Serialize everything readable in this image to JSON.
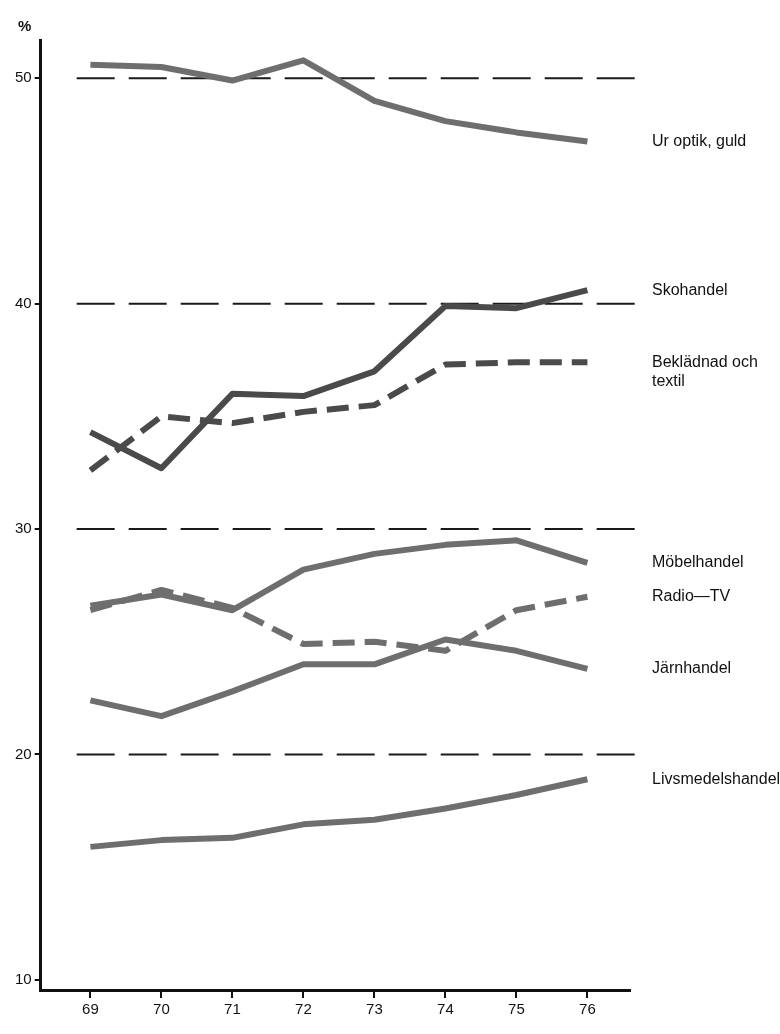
{
  "chart_data": {
    "type": "line",
    "ylabel": "%",
    "x": [
      69,
      70,
      71,
      72,
      73,
      74,
      75,
      76
    ],
    "xlim": [
      68.3,
      76.6
    ],
    "xticks": [
      69,
      70,
      71,
      72,
      73,
      74,
      75,
      76
    ],
    "ylim": [
      9.55,
      51.7
    ],
    "yticks": [
      10,
      20,
      30,
      40,
      50
    ],
    "grid": false,
    "legend": false,
    "marker": "none",
    "ref_lines": [
      {
        "axis": "y",
        "value": 20,
        "color": "#1a1a1a",
        "line_style": "dashed"
      },
      {
        "axis": "y",
        "value": 30,
        "color": "#1a1a1a",
        "line_style": "dashed"
      },
      {
        "axis": "y",
        "value": 40,
        "color": "#1a1a1a",
        "line_style": "dashed"
      },
      {
        "axis": "y",
        "value": 50,
        "color": "#1a1a1a",
        "line_style": "dashed"
      }
    ],
    "series": [
      {
        "name": "Ur optik, guld",
        "color": "#6e6e6e",
        "line_style": "solid",
        "values": [
          50.6,
          50.5,
          49.9,
          50.8,
          49.0,
          48.1,
          47.6,
          47.2
        ]
      },
      {
        "name": "Skohandel",
        "color": "#4a4a4a",
        "line_style": "solid",
        "values": [
          34.3,
          32.7,
          36.0,
          35.9,
          37.0,
          39.9,
          39.8,
          40.6
        ]
      },
      {
        "name": "Beklädnad och textil",
        "color": "#4a4a4a",
        "line_style": "dashed",
        "values": [
          32.6,
          35.0,
          34.7,
          35.2,
          35.5,
          37.3,
          37.4,
          37.4
        ]
      },
      {
        "name": "Möbelhandel",
        "color": "#6e6e6e",
        "line_style": "solid",
        "values": [
          26.6,
          27.1,
          26.4,
          28.2,
          28.9,
          29.3,
          29.5,
          28.5
        ]
      },
      {
        "name": "Radio—TV",
        "color": "#6e6e6e",
        "line_style": "dashed",
        "values": [
          26.4,
          27.3,
          26.5,
          24.9,
          25.0,
          24.6,
          26.4,
          27.0
        ]
      },
      {
        "name": "Järnhandel",
        "color": "#6e6e6e",
        "line_style": "solid",
        "values": [
          22.4,
          21.7,
          22.8,
          24.0,
          24.0,
          25.1,
          24.6,
          23.8
        ]
      },
      {
        "name": "Livsmedelshandel",
        "color": "#6e6e6e",
        "line_style": "solid",
        "values": [
          15.9,
          16.2,
          16.3,
          16.9,
          17.1,
          17.6,
          18.2,
          18.9
        ]
      }
    ]
  }
}
